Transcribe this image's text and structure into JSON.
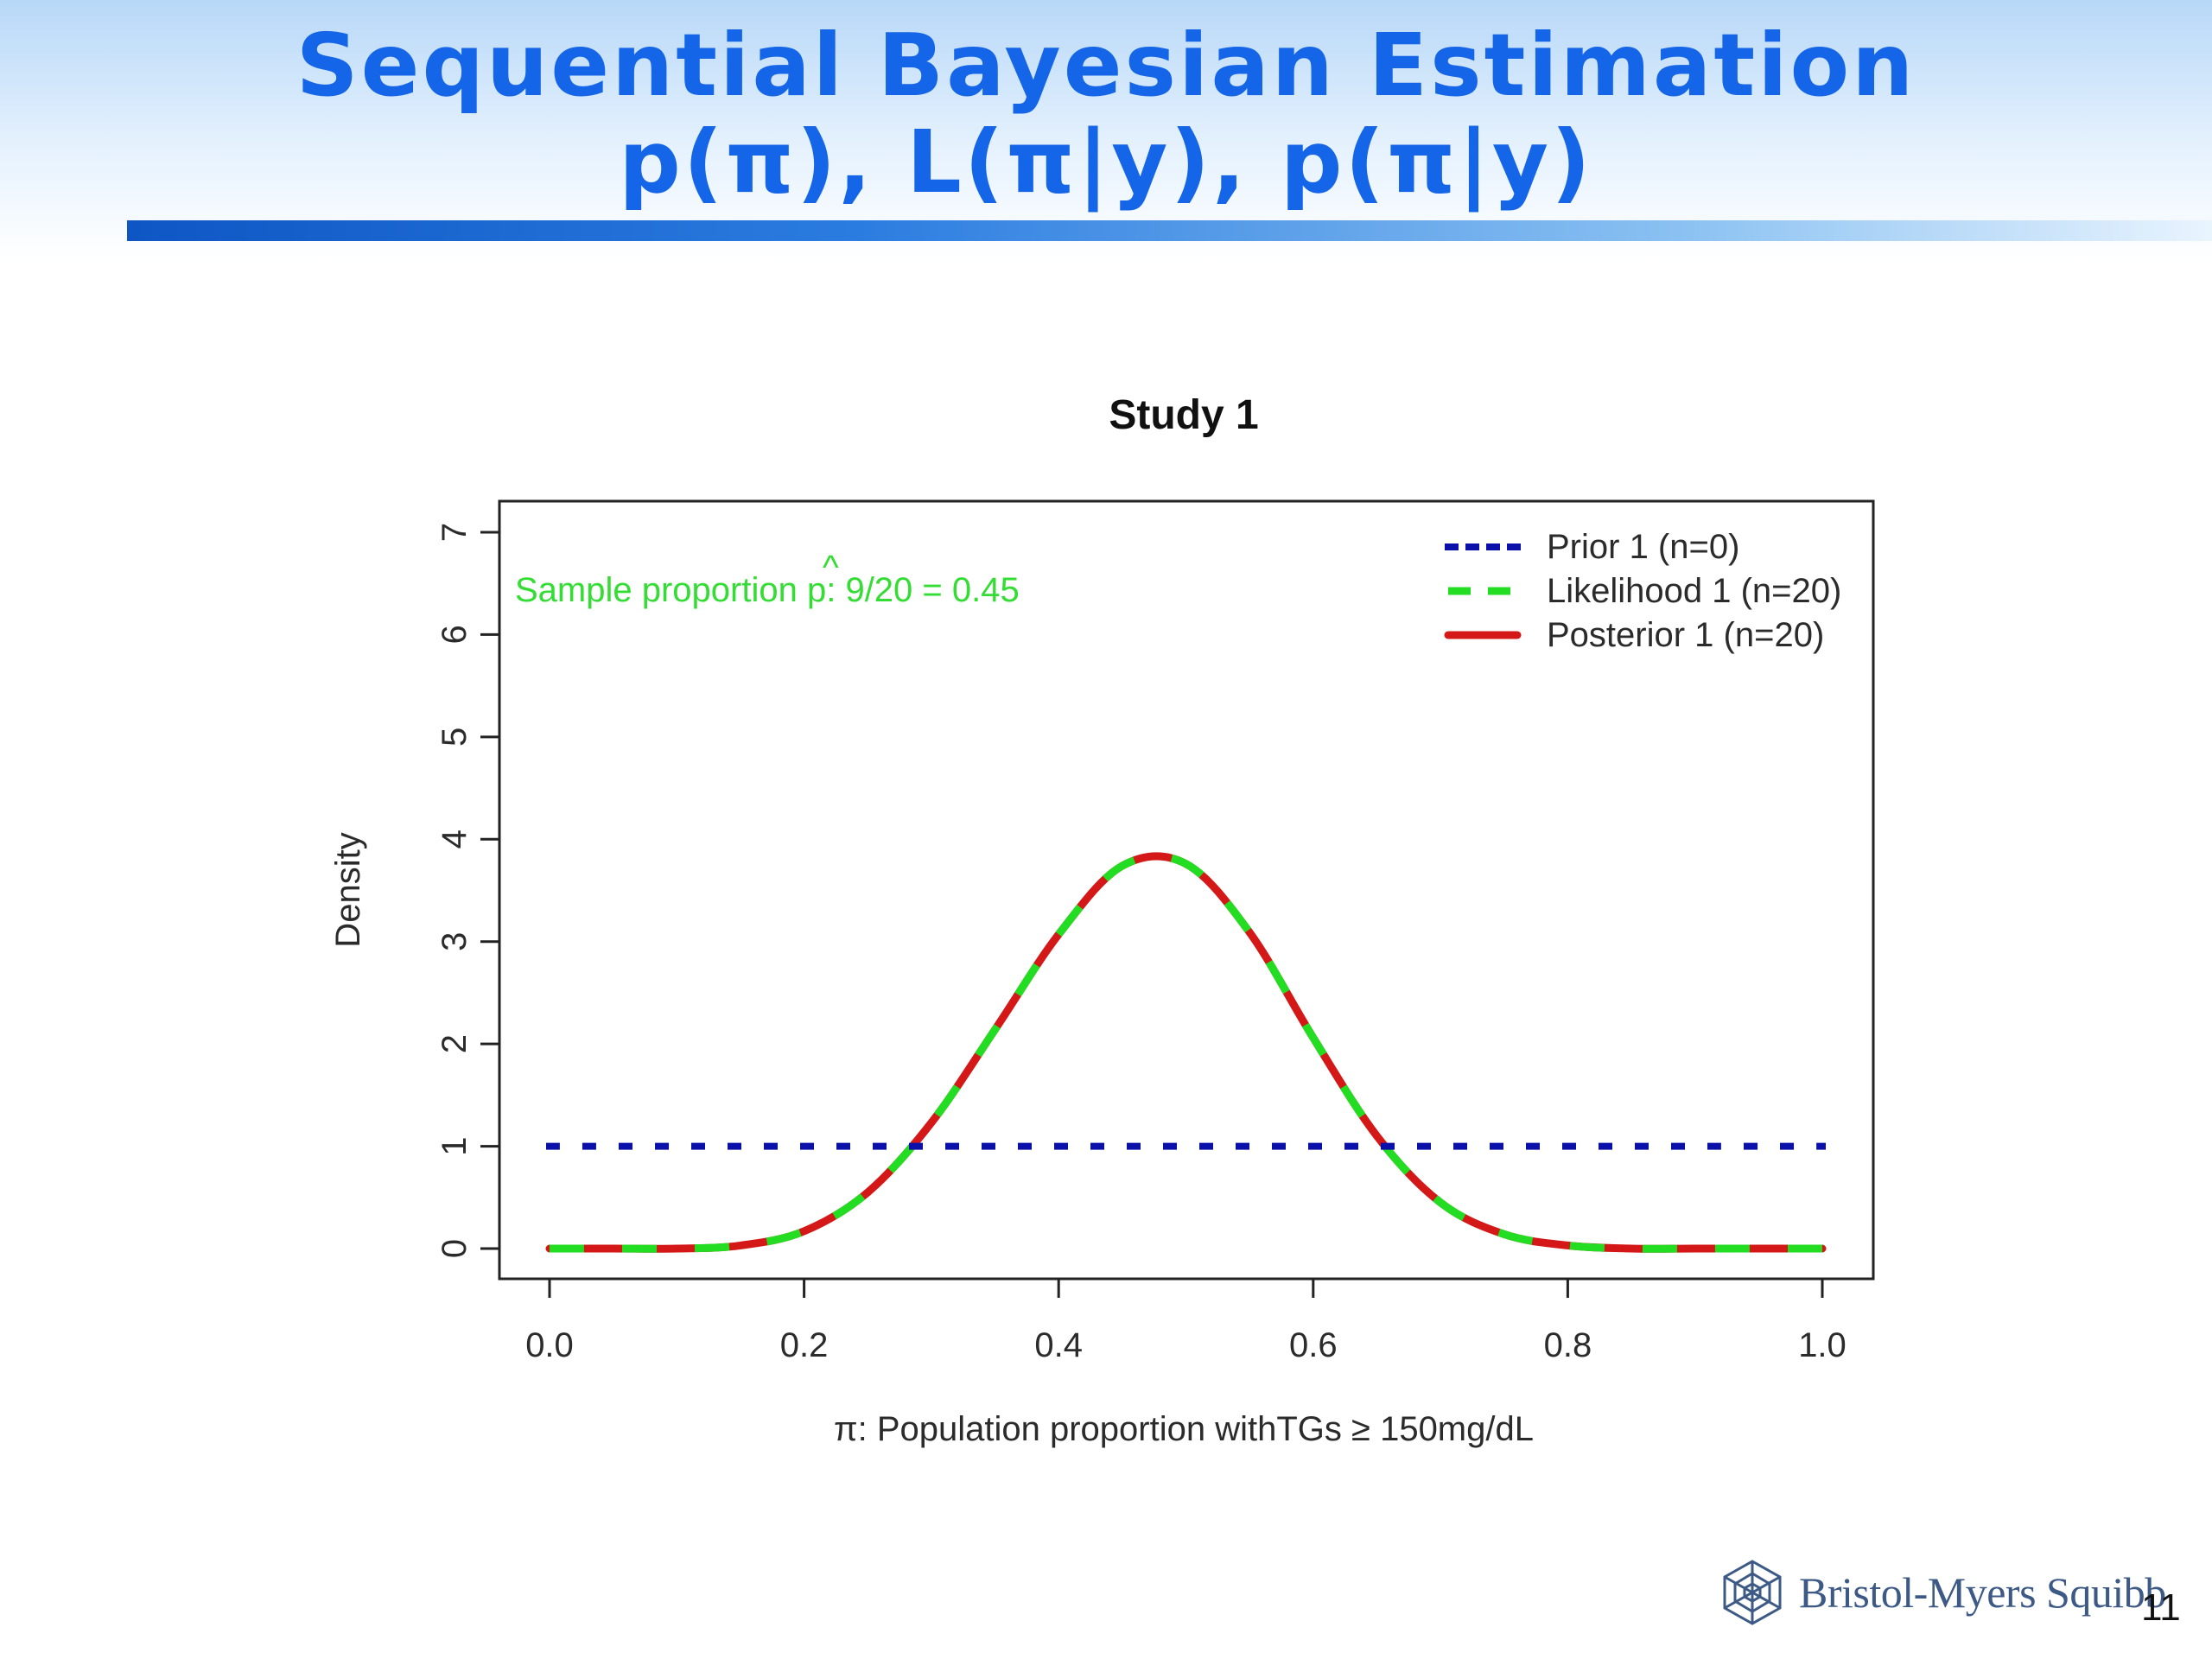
{
  "slide": {
    "title_line1": "Sequential Bayesian Estimation",
    "title_line2": "p(π), L(π|y), p(π|y)",
    "title_color": "#1565e8",
    "page_number": "11",
    "logo_text": "Bristol-Myers Squibb",
    "logo_icon": "bms-starburst-icon"
  },
  "chart_data": {
    "type": "line",
    "title": "Study 1",
    "xlabel": "π: Population proportion withTGs ≥ 150mg/dL",
    "ylabel": "Density",
    "xlim": [
      0,
      1
    ],
    "ylim": [
      0,
      7
    ],
    "x_ticks": [
      "0.0",
      "0.2",
      "0.4",
      "0.6",
      "0.8",
      "1.0"
    ],
    "y_ticks": [
      "0",
      "1",
      "2",
      "3",
      "4",
      "5",
      "6",
      "7"
    ],
    "annotation": {
      "text_before": "Sample proportion ",
      "p_hat": "p",
      "hat": "^",
      "text_after": ": 9/20 = 0.45",
      "color": "#33dd33"
    },
    "legend_position": "top-right",
    "grid": false,
    "series": [
      {
        "name": "Prior 1 (n=0)",
        "color": "#0a10a8",
        "style": "dotted",
        "x": [
          0.0,
          0.1,
          0.2,
          0.3,
          0.4,
          0.5,
          0.6,
          0.7,
          0.8,
          0.9,
          1.0
        ],
        "y": [
          1,
          1,
          1,
          1,
          1,
          1,
          1,
          1,
          1,
          1,
          1
        ]
      },
      {
        "name": "Likelihood 1 (n=20)",
        "color": "#22dd22",
        "style": "dashed",
        "x": [
          0.0,
          0.05,
          0.1,
          0.15,
          0.2,
          0.25,
          0.3,
          0.35,
          0.4,
          0.45,
          0.5,
          0.55,
          0.6,
          0.65,
          0.7,
          0.75,
          0.8,
          0.85,
          0.9,
          0.95,
          1.0
        ],
        "y": [
          0,
          0.0,
          0.0,
          0.03,
          0.17,
          0.55,
          1.23,
          2.14,
          3.07,
          3.74,
          3.76,
          3.09,
          2.06,
          1.1,
          0.45,
          0.14,
          0.03,
          0.0,
          0.0,
          0.0,
          0
        ]
      },
      {
        "name": "Posterior 1 (n=20)",
        "color": "#d41818",
        "style": "solid",
        "x": [
          0.0,
          0.05,
          0.1,
          0.15,
          0.2,
          0.25,
          0.3,
          0.35,
          0.4,
          0.45,
          0.5,
          0.55,
          0.6,
          0.65,
          0.7,
          0.75,
          0.8,
          0.85,
          0.9,
          0.95,
          1.0
        ],
        "y": [
          0,
          0.0,
          0.0,
          0.03,
          0.17,
          0.55,
          1.23,
          2.14,
          3.07,
          3.74,
          3.76,
          3.09,
          2.06,
          1.1,
          0.45,
          0.14,
          0.03,
          0.0,
          0.0,
          0.0,
          0
        ]
      }
    ]
  }
}
